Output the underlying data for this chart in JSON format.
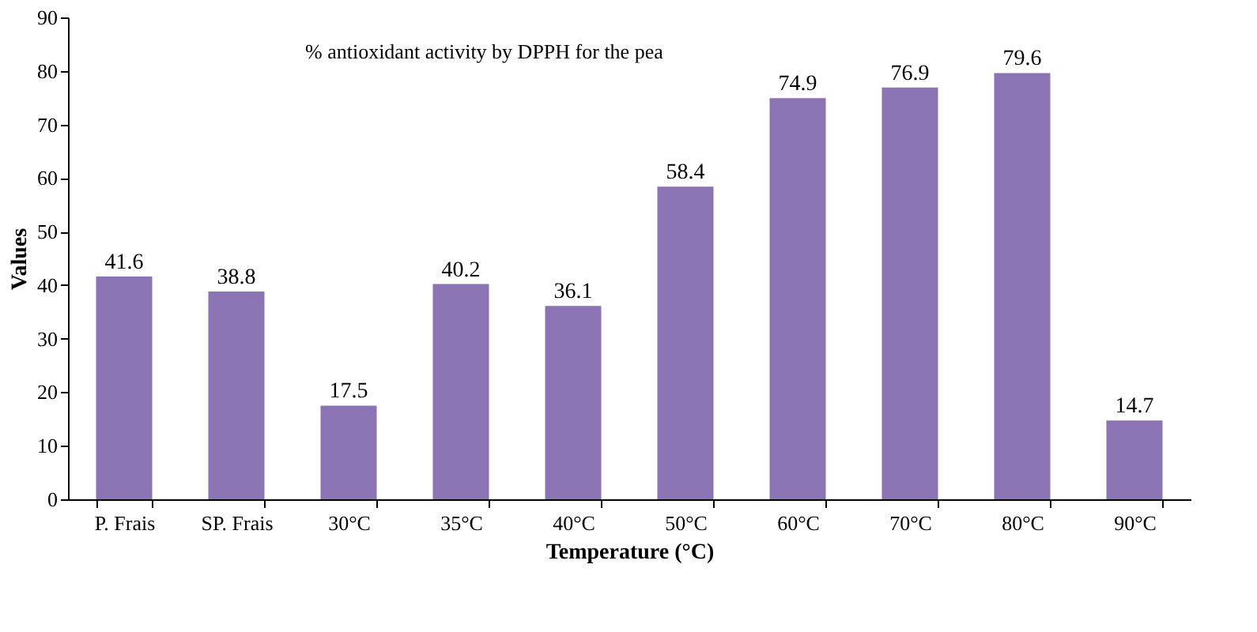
{
  "chart_data": {
    "type": "bar",
    "title": "% antioxidant activity by DPPH for the pea",
    "xlabel": "Temperature (°C)",
    "ylabel": "Values",
    "categories": [
      "P. Frais",
      "SP. Frais",
      "30°C",
      "35°C",
      "40°C",
      "50°C",
      "60°C",
      "70°C",
      "80°C",
      "90°C"
    ],
    "values": [
      41.6,
      38.8,
      17.5,
      40.2,
      36.1,
      58.4,
      74.9,
      76.9,
      79.6,
      14.7
    ],
    "color": "#8b74b3",
    "ylim": [
      0,
      90
    ],
    "yticks": [
      0,
      10,
      20,
      30,
      40,
      50,
      60,
      70,
      80,
      90
    ],
    "grid": false,
    "data_labels": true
  }
}
